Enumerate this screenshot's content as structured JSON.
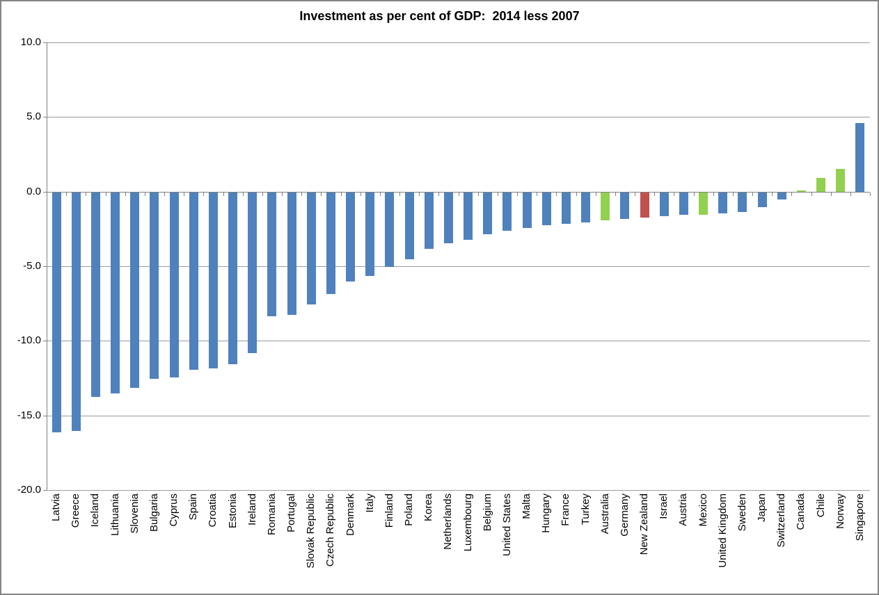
{
  "chart_data": {
    "type": "bar",
    "title": "Investment as per cent of GDP:  2014 less 2007",
    "xlabel": "",
    "ylabel": "",
    "ylim": [
      -20,
      10
    ],
    "ytick_values": [
      10,
      5,
      0,
      -5,
      -10,
      -15,
      -20
    ],
    "ytick_labels": [
      "10.0",
      "5.0",
      "0.0",
      "-5.0",
      "-10.0",
      "-15.0",
      "-20.0"
    ],
    "grid": true,
    "legend": false,
    "categories": [
      "Latvia",
      "Greece",
      "Iceland",
      "Lithuania",
      "Slovenia",
      "Bulgaria",
      "Cyprus",
      "Spain",
      "Croatia",
      "Estonia",
      "Ireland",
      "Romania",
      "Portugal",
      "Slovak Republic",
      "Czech Republic",
      "Denmark",
      "Italy",
      "Finland",
      "Poland",
      "Korea",
      "Netherlands",
      "Luxembourg",
      "Belgium",
      "United States",
      "Malta",
      "Hungary",
      "France",
      "Turkey",
      "Australia",
      "Germany",
      "New Zealand",
      "Israel",
      "Austria",
      "Mexico",
      "United Kingdom",
      "Sweden",
      "Japan",
      "Switzerland",
      "Canada",
      "Chile",
      "Norway",
      "Singapore"
    ],
    "values": [
      -16.1,
      -16.0,
      -13.7,
      -13.5,
      -13.1,
      -12.5,
      -12.4,
      -11.9,
      -11.8,
      -11.5,
      -10.8,
      -8.3,
      -8.2,
      -7.5,
      -6.8,
      -6.0,
      -5.6,
      -5.0,
      -4.5,
      -3.8,
      -3.4,
      -3.2,
      -2.8,
      -2.6,
      -2.4,
      -2.2,
      -2.1,
      -2.0,
      -1.9,
      -1.8,
      -1.7,
      -1.6,
      -1.5,
      -1.5,
      -1.4,
      -1.3,
      -1.0,
      -0.5,
      0.1,
      0.9,
      1.5,
      4.6
    ],
    "bar_colors": [
      "#4F81BD",
      "#4F81BD",
      "#4F81BD",
      "#4F81BD",
      "#4F81BD",
      "#4F81BD",
      "#4F81BD",
      "#4F81BD",
      "#4F81BD",
      "#4F81BD",
      "#4F81BD",
      "#4F81BD",
      "#4F81BD",
      "#4F81BD",
      "#4F81BD",
      "#4F81BD",
      "#4F81BD",
      "#4F81BD",
      "#4F81BD",
      "#4F81BD",
      "#4F81BD",
      "#4F81BD",
      "#4F81BD",
      "#4F81BD",
      "#4F81BD",
      "#4F81BD",
      "#4F81BD",
      "#4F81BD",
      "#92D050",
      "#4F81BD",
      "#C0504D",
      "#4F81BD",
      "#4F81BD",
      "#92D050",
      "#4F81BD",
      "#4F81BD",
      "#4F81BD",
      "#4F81BD",
      "#92D050",
      "#92D050",
      "#92D050",
      "#4F81BD"
    ],
    "palette": {
      "default_bar": "#4F81BD",
      "highlight_green": "#92D050",
      "highlight_red": "#C0504D",
      "gridline": "#9b9b9b",
      "axis": "#808080",
      "frame_border": "#848484",
      "text": "#000000",
      "background": "#ffffff"
    }
  }
}
